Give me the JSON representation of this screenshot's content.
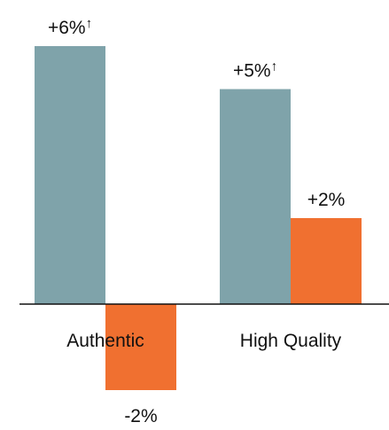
{
  "chart_data": {
    "type": "bar",
    "categories": [
      "Authentic",
      "High Quality"
    ],
    "series": [
      {
        "values": [
          6,
          5
        ],
        "labels": [
          "+6%",
          "+5%"
        ],
        "arrow": [
          "↑",
          "↑"
        ],
        "color": "#7fa3aa"
      },
      {
        "values": [
          -2,
          2
        ],
        "labels": [
          "-2%",
          "+2%"
        ],
        "arrow": [
          "",
          ""
        ],
        "color": "#f07030"
      }
    ],
    "title": "",
    "xlabel": "",
    "ylabel": "",
    "ylim": [
      -2.2,
      6.6
    ],
    "grid": false,
    "legend": "none",
    "colors": {
      "axis": "#111111",
      "text": "#111111"
    }
  }
}
